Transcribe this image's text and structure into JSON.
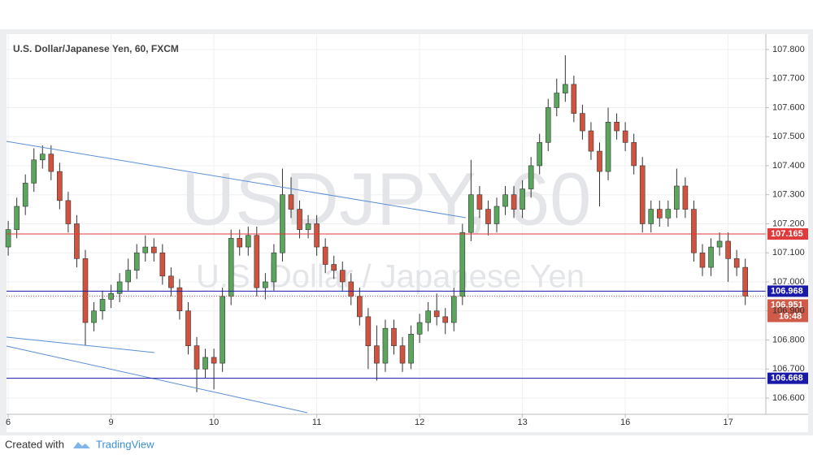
{
  "chart_data": {
    "type": "candlestick",
    "title": "U.S. Dollar/Japanese Yen, 60, FXCM",
    "watermark": "USDJPY, 60",
    "watermark_subtitle": "U.S. Dollar / Japanese Yen",
    "up_color": "#5aa65c",
    "down_color": "#d0533f",
    "x": [
      0,
      1,
      2,
      3,
      4,
      5,
      6,
      7,
      8,
      9,
      10,
      11,
      12,
      13,
      14,
      15,
      16,
      17,
      18,
      19,
      20,
      21,
      22,
      23,
      24,
      25,
      26,
      27,
      28,
      29,
      30,
      31,
      32,
      33,
      34,
      35,
      36,
      37,
      38,
      39,
      40,
      41,
      42,
      43,
      44,
      45,
      46,
      47,
      48,
      49,
      50,
      51,
      52,
      53,
      54,
      55,
      56,
      57,
      58,
      59,
      60,
      61,
      62,
      63,
      64,
      65,
      66,
      67,
      68,
      69,
      70,
      71,
      72,
      73,
      74,
      75,
      76,
      77,
      78,
      79,
      80,
      81,
      82,
      83,
      84,
      85,
      86
    ],
    "open": [
      107.12,
      107.18,
      107.26,
      107.34,
      107.42,
      107.44,
      107.38,
      107.28,
      107.2,
      107.08,
      106.86,
      106.9,
      106.94,
      106.96,
      107.0,
      107.04,
      107.1,
      107.12,
      107.1,
      107.02,
      106.98,
      106.9,
      106.78,
      106.7,
      106.74,
      106.72,
      106.95,
      107.15,
      107.12,
      107.16,
      106.98,
      107.0,
      107.1,
      107.3,
      107.25,
      107.18,
      107.2,
      107.12,
      107.06,
      107.04,
      107.0,
      106.95,
      106.88,
      106.78,
      106.72,
      106.84,
      106.78,
      106.72,
      106.82,
      106.86,
      106.9,
      106.88,
      106.86,
      106.95,
      107.17,
      107.3,
      107.25,
      107.2,
      107.26,
      107.3,
      107.25,
      107.32,
      107.4,
      107.48,
      107.6,
      107.65,
      107.68,
      107.58,
      107.52,
      107.45,
      107.38,
      107.55,
      107.52,
      107.48,
      107.4,
      107.2,
      107.25,
      107.22,
      107.25,
      107.33,
      107.25,
      107.1,
      107.05,
      107.12,
      107.14,
      107.08,
      107.05
    ],
    "high": [
      107.21,
      107.29,
      107.37,
      107.46,
      107.47,
      107.47,
      107.41,
      107.31,
      107.23,
      107.11,
      106.93,
      106.97,
      106.99,
      107.03,
      107.08,
      107.13,
      107.16,
      107.15,
      107.13,
      107.05,
      107.01,
      106.93,
      106.81,
      106.77,
      106.77,
      106.98,
      107.18,
      107.18,
      107.19,
      107.19,
      107.03,
      107.13,
      107.39,
      107.36,
      107.28,
      107.23,
      107.23,
      107.15,
      107.09,
      107.07,
      107.03,
      106.98,
      106.91,
      106.85,
      106.87,
      106.87,
      106.81,
      106.85,
      106.89,
      106.93,
      106.96,
      106.91,
      106.98,
      107.2,
      107.42,
      107.33,
      107.28,
      107.29,
      107.33,
      107.33,
      107.35,
      107.43,
      107.51,
      107.63,
      107.7,
      107.78,
      107.71,
      107.61,
      107.55,
      107.48,
      107.6,
      107.58,
      107.55,
      107.51,
      107.43,
      107.28,
      107.28,
      107.28,
      107.39,
      107.36,
      107.28,
      107.13,
      107.15,
      107.17,
      107.17,
      107.11,
      107.08
    ],
    "low": [
      107.09,
      107.15,
      107.23,
      107.31,
      107.39,
      107.35,
      107.25,
      107.17,
      107.05,
      106.78,
      106.83,
      106.87,
      106.91,
      106.93,
      106.97,
      107.01,
      107.07,
      107.07,
      106.99,
      106.95,
      106.87,
      106.75,
      106.62,
      106.67,
      106.63,
      106.69,
      106.92,
      107.09,
      107.09,
      106.95,
      106.94,
      106.97,
      107.07,
      107.22,
      107.15,
      107.15,
      107.09,
      107.03,
      107.01,
      106.97,
      106.92,
      106.85,
      106.7,
      106.66,
      106.69,
      106.75,
      106.69,
      106.7,
      106.79,
      106.83,
      106.85,
      106.82,
      106.83,
      106.92,
      107.14,
      107.22,
      107.16,
      107.17,
      107.23,
      107.22,
      107.22,
      107.29,
      107.37,
      107.45,
      107.57,
      107.62,
      107.55,
      107.49,
      107.42,
      107.26,
      107.35,
      107.49,
      107.45,
      107.37,
      107.17,
      107.17,
      107.19,
      107.19,
      107.22,
      107.22,
      107.07,
      107.02,
      107.02,
      107.09,
      107.0,
      107.02,
      106.92
    ],
    "close": [
      107.18,
      107.26,
      107.34,
      107.42,
      107.44,
      107.38,
      107.28,
      107.2,
      107.08,
      106.86,
      106.9,
      106.94,
      106.96,
      107.0,
      107.04,
      107.1,
      107.12,
      107.1,
      107.02,
      106.98,
      106.9,
      106.78,
      106.7,
      106.74,
      106.72,
      106.95,
      107.15,
      107.12,
      107.16,
      106.98,
      107.0,
      107.1,
      107.3,
      107.25,
      107.18,
      107.2,
      107.12,
      107.06,
      107.04,
      107.0,
      106.95,
      106.88,
      106.78,
      106.72,
      106.84,
      106.78,
      106.72,
      106.82,
      106.86,
      106.9,
      106.88,
      106.86,
      106.95,
      107.17,
      107.3,
      107.25,
      107.2,
      107.26,
      107.3,
      107.25,
      107.32,
      107.4,
      107.48,
      107.6,
      107.65,
      107.68,
      107.58,
      107.52,
      107.45,
      107.38,
      107.55,
      107.52,
      107.48,
      107.4,
      107.2,
      107.25,
      107.22,
      107.25,
      107.33,
      107.25,
      107.1,
      107.05,
      107.12,
      107.14,
      107.08,
      107.05,
      106.951
    ],
    "xlim": [
      -0.2,
      88.4
    ],
    "xticks": [
      {
        "value": 0,
        "label": "6"
      },
      {
        "value": 12,
        "label": "9"
      },
      {
        "value": 24,
        "label": "10"
      },
      {
        "value": 36,
        "label": "11"
      },
      {
        "value": 48,
        "label": "12"
      },
      {
        "value": 60,
        "label": "13"
      },
      {
        "value": 72,
        "label": "16"
      },
      {
        "value": 84,
        "label": "17"
      }
    ],
    "ylim": [
      106.544,
      107.853
    ],
    "yticks": [
      {
        "value": 106.6,
        "label": "106.600"
      },
      {
        "value": 106.7,
        "label": "106.700"
      },
      {
        "value": 106.8,
        "label": "106.800"
      },
      {
        "value": 106.9,
        "label": "106.900"
      },
      {
        "value": 107.0,
        "label": "107.000"
      },
      {
        "value": 107.1,
        "label": "107.100"
      },
      {
        "value": 107.2,
        "label": "107.200"
      },
      {
        "value": 107.3,
        "label": "107.300"
      },
      {
        "value": 107.4,
        "label": "107.400"
      },
      {
        "value": 107.5,
        "label": "107.500"
      },
      {
        "value": 107.6,
        "label": "107.600"
      },
      {
        "value": 107.7,
        "label": "107.700"
      },
      {
        "value": 107.8,
        "label": "107.800"
      }
    ],
    "grid": true,
    "levels": [
      {
        "value": 107.165,
        "label": "107.165",
        "color": "#e03a3a"
      },
      {
        "value": 106.968,
        "label": "106.968",
        "color": "#1a1aa8"
      },
      {
        "value": 106.668,
        "label": "106.668",
        "color": "#1a1aa8"
      }
    ],
    "last_price": {
      "value": 106.951,
      "label": "106.951",
      "countdown": "16:48",
      "color": "#cf5a48"
    },
    "footer": {
      "prefix": "Created with",
      "brand": "TradingView"
    }
  }
}
